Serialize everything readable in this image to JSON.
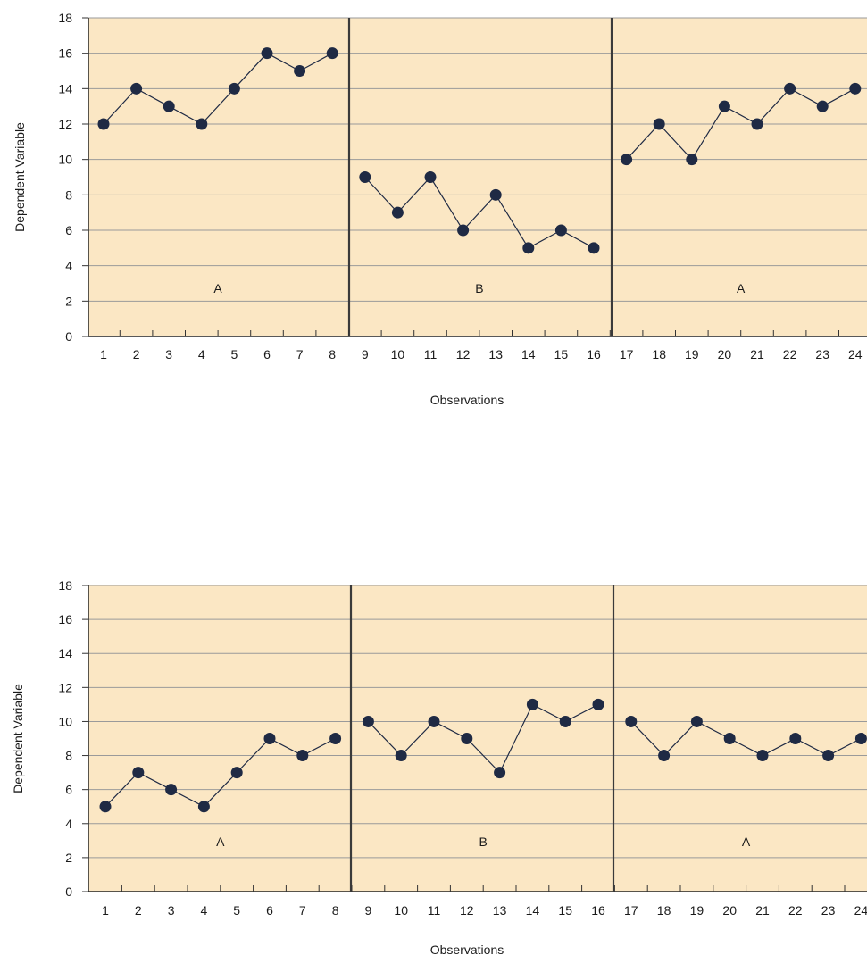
{
  "chart_data": [
    {
      "type": "line",
      "xlabel": "Observations",
      "ylabel": "Dependent Variable",
      "ylim": [
        0,
        18
      ],
      "yticks": [
        0,
        2,
        4,
        6,
        8,
        10,
        12,
        14,
        16,
        18
      ],
      "x": [
        1,
        2,
        3,
        4,
        5,
        6,
        7,
        8,
        9,
        10,
        11,
        12,
        13,
        14,
        15,
        16,
        17,
        18,
        19,
        20,
        21,
        22,
        23,
        24
      ],
      "phases": [
        {
          "label": "A",
          "x": [
            1,
            2,
            3,
            4,
            5,
            6,
            7,
            8
          ],
          "values": [
            12,
            14,
            13,
            12,
            14,
            16,
            15,
            16
          ]
        },
        {
          "label": "B",
          "x": [
            9,
            10,
            11,
            12,
            13,
            14,
            15,
            16
          ],
          "values": [
            9,
            7,
            9,
            6,
            8,
            5,
            6,
            5
          ]
        },
        {
          "label": "A",
          "x": [
            17,
            18,
            19,
            20,
            21,
            22,
            23,
            24
          ],
          "values": [
            10,
            12,
            10,
            13,
            12,
            14,
            13,
            14
          ]
        }
      ],
      "grid": true,
      "colors": {
        "background": "#fbe7c4",
        "marker": "#1f2a44",
        "line": "#1f2a44",
        "grid": "#9a9a9a",
        "divider": "#3a3a3a"
      }
    },
    {
      "type": "line",
      "xlabel": "Observations",
      "ylabel": "Dependent Variable",
      "ylim": [
        0,
        18
      ],
      "yticks": [
        0,
        2,
        4,
        6,
        8,
        10,
        12,
        14,
        16,
        18
      ],
      "x": [
        1,
        2,
        3,
        4,
        5,
        6,
        7,
        8,
        9,
        10,
        11,
        12,
        13,
        14,
        15,
        16,
        17,
        18,
        19,
        20,
        21,
        22,
        23,
        24
      ],
      "phases": [
        {
          "label": "A",
          "x": [
            1,
            2,
            3,
            4,
            5,
            6,
            7,
            8
          ],
          "values": [
            5,
            7,
            6,
            5,
            7,
            9,
            8,
            9
          ]
        },
        {
          "label": "B",
          "x": [
            9,
            10,
            11,
            12,
            13,
            14,
            15,
            16
          ],
          "values": [
            10,
            8,
            10,
            9,
            7,
            11,
            10,
            11
          ]
        },
        {
          "label": "A",
          "x": [
            17,
            18,
            19,
            20,
            21,
            22,
            23,
            24
          ],
          "values": [
            10,
            8,
            10,
            9,
            8,
            9,
            8,
            9
          ]
        }
      ],
      "grid": true,
      "colors": {
        "background": "#fbe7c4",
        "marker": "#1f2a44",
        "line": "#1f2a44",
        "grid": "#9a9a9a",
        "divider": "#3a3a3a"
      }
    }
  ]
}
